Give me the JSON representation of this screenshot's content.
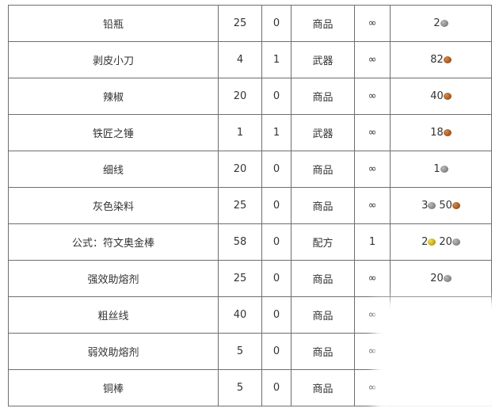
{
  "rows": [
    {
      "name": "铅瓶",
      "a": "25",
      "b": "0",
      "type": "商品",
      "stock": "∞",
      "price": [
        {
          "amount": "2",
          "coin": "silver"
        }
      ]
    },
    {
      "name": "剥皮小刀",
      "a": "4",
      "b": "1",
      "type": "武器",
      "stock": "∞",
      "price": [
        {
          "amount": "82",
          "coin": "copper"
        }
      ]
    },
    {
      "name": "辣椒",
      "a": "20",
      "b": "0",
      "type": "商品",
      "stock": "∞",
      "price": [
        {
          "amount": "40",
          "coin": "copper"
        }
      ]
    },
    {
      "name": "铁匠之锤",
      "a": "1",
      "b": "1",
      "type": "武器",
      "stock": "∞",
      "price": [
        {
          "amount": "18",
          "coin": "copper"
        }
      ]
    },
    {
      "name": "细线",
      "a": "20",
      "b": "0",
      "type": "商品",
      "stock": "∞",
      "price": [
        {
          "amount": "1",
          "coin": "silver"
        }
      ]
    },
    {
      "name": "灰色染料",
      "a": "25",
      "b": "0",
      "type": "商品",
      "stock": "∞",
      "price": [
        {
          "amount": "3",
          "coin": "silver"
        },
        {
          "amount": "50",
          "coin": "copper"
        }
      ]
    },
    {
      "name": "公式：符文奥金棒",
      "a": "58",
      "b": "0",
      "type": "配方",
      "stock": "1",
      "price": [
        {
          "amount": "2",
          "coin": "gold"
        },
        {
          "amount": "20",
          "coin": "silver"
        }
      ]
    },
    {
      "name": "强效助熔剂",
      "a": "25",
      "b": "0",
      "type": "商品",
      "stock": "∞",
      "price": [
        {
          "amount": "20",
          "coin": "silver"
        }
      ]
    },
    {
      "name": "粗丝线",
      "a": "40",
      "b": "0",
      "type": "商品",
      "stock": "∞",
      "price": []
    },
    {
      "name": "弱效助熔剂",
      "a": "5",
      "b": "0",
      "type": "商品",
      "stock": "∞",
      "price": []
    },
    {
      "name": "铜棒",
      "a": "5",
      "b": "0",
      "type": "商品",
      "stock": "∞",
      "price": []
    }
  ]
}
